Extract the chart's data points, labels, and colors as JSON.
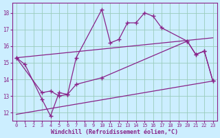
{
  "xlabel": "Windchill (Refroidissement éolien,°C)",
  "bg_color": "#cceeff",
  "line_color": "#882288",
  "grid_color": "#99ccbb",
  "xlim": [
    -0.5,
    23.5
  ],
  "ylim": [
    11.5,
    18.6
  ],
  "yticks": [
    12,
    13,
    14,
    15,
    16,
    17,
    18
  ],
  "xticks": [
    0,
    1,
    2,
    3,
    4,
    5,
    6,
    7,
    8,
    9,
    10,
    11,
    12,
    13,
    14,
    15,
    16,
    17,
    18,
    19,
    20,
    21,
    22,
    23
  ],
  "line1_x": [
    0,
    1,
    3,
    4,
    5,
    6,
    7,
    10,
    11,
    12,
    13,
    14,
    15,
    16,
    17,
    20,
    21,
    22,
    23
  ],
  "line1_y": [
    15.3,
    14.9,
    12.8,
    11.8,
    13.2,
    13.1,
    15.3,
    18.2,
    16.2,
    16.4,
    17.4,
    17.4,
    18.0,
    17.8,
    17.1,
    16.3,
    15.5,
    15.7,
    13.9
  ],
  "line2_x": [
    0,
    3,
    4,
    5,
    6,
    7,
    10,
    20,
    21,
    22,
    23
  ],
  "line2_y": [
    15.3,
    13.2,
    13.3,
    13.0,
    13.1,
    13.7,
    14.1,
    16.3,
    15.5,
    15.7,
    13.9
  ],
  "line3_x": [
    0,
    23
  ],
  "line3_y": [
    15.3,
    16.5
  ],
  "line4_x": [
    0,
    23
  ],
  "line4_y": [
    11.9,
    13.9
  ]
}
